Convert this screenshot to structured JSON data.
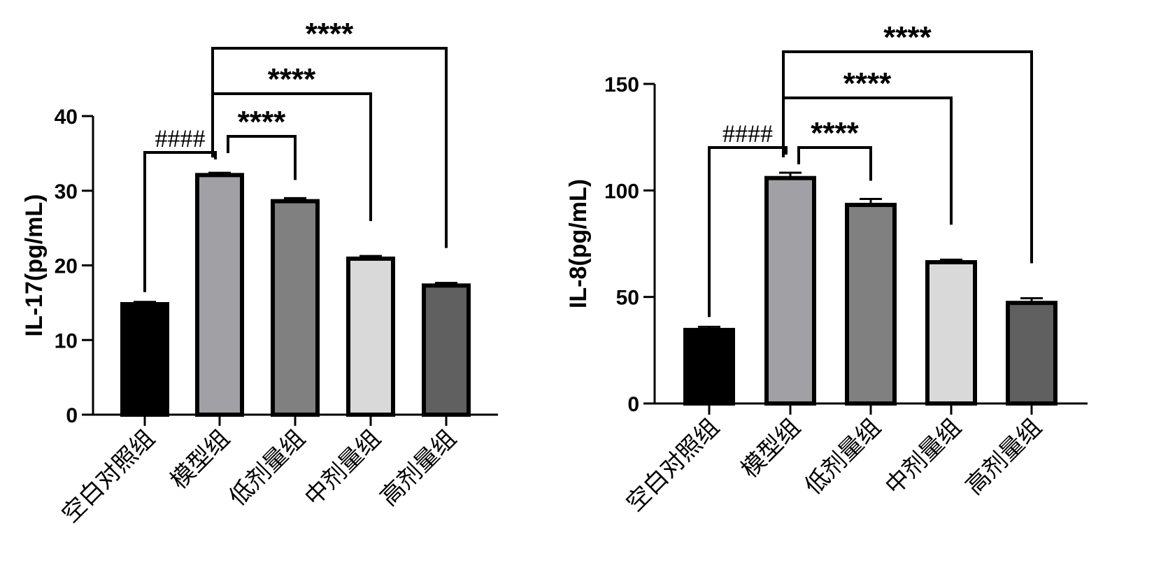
{
  "chart_data": [
    {
      "type": "bar",
      "categories": [
        "空白对照组",
        "模型组",
        "低剂量组",
        "中剂量组",
        "高剂量组"
      ],
      "values": [
        14.8,
        32.1,
        28.6,
        20.9,
        17.3
      ],
      "errors": [
        0.3,
        0.3,
        0.4,
        0.35,
        0.35
      ],
      "fills": [
        "#000000",
        "#a0a0a5",
        "#808080",
        "#d9d9d9",
        "#606060"
      ],
      "ylabel": "IL-17(pg/mL)",
      "ylim": [
        0,
        40
      ],
      "yticks": [
        0,
        10,
        20,
        30,
        40
      ],
      "comparisons": [
        {
          "from": 0,
          "to": 1,
          "label": "####"
        },
        {
          "from": 1,
          "to": 2,
          "label": "****"
        },
        {
          "from": 1,
          "to": 3,
          "label": "****"
        },
        {
          "from": 1,
          "to": 4,
          "label": "****"
        }
      ]
    },
    {
      "type": "bar",
      "categories": [
        "空白对照组",
        "模型组",
        "低剂量组",
        "中剂量组",
        "高剂量组"
      ],
      "values": [
        34.5,
        105.8,
        93.2,
        66.3,
        47.2
      ],
      "errors": [
        1.5,
        2.5,
        2.8,
        1.2,
        2.2
      ],
      "fills": [
        "#000000",
        "#a0a0a5",
        "#808080",
        "#d9d9d9",
        "#606060"
      ],
      "ylabel": "IL-8(pg/mL)",
      "ylim": [
        0,
        150
      ],
      "yticks": [
        0,
        50,
        100,
        150
      ],
      "comparisons": [
        {
          "from": 0,
          "to": 1,
          "label": "####"
        },
        {
          "from": 1,
          "to": 2,
          "label": "****"
        },
        {
          "from": 1,
          "to": 3,
          "label": "****"
        },
        {
          "from": 1,
          "to": 4,
          "label": "****"
        }
      ]
    }
  ]
}
